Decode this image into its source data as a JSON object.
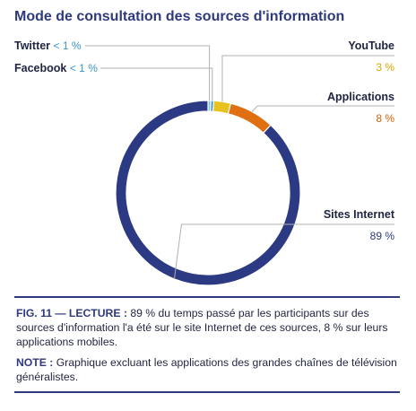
{
  "title": "Mode de consultation des sources d'information",
  "chart_data": {
    "type": "donut",
    "slices": [
      {
        "label": "Sites Internet",
        "value": 89,
        "display": "89 %",
        "color": "#2b3a82"
      },
      {
        "label": "Twitter",
        "value": 0.5,
        "display": "< 1 %",
        "color": "#7ec3e6"
      },
      {
        "label": "Facebook",
        "value": 0.5,
        "display": "< 1 %",
        "color": "#3a93c8"
      },
      {
        "label": "YouTube",
        "value": 3,
        "display": "3 %",
        "color": "#e8c21f"
      },
      {
        "label": "Applications",
        "value": 8,
        "display": "8 %",
        "color": "#e06f12"
      }
    ]
  },
  "caption": {
    "lecture_label": "FIG. 11 — LECTURE :",
    "lecture_text": "89 % du temps passé par les participants sur des sources d'information l'a été sur le site Internet de ces sources, 8 % sur leurs applications mobiles.",
    "note_label": "NOTE :",
    "note_text": "Graphique excluant les applications des grandes chaînes de télévision généralistes."
  }
}
